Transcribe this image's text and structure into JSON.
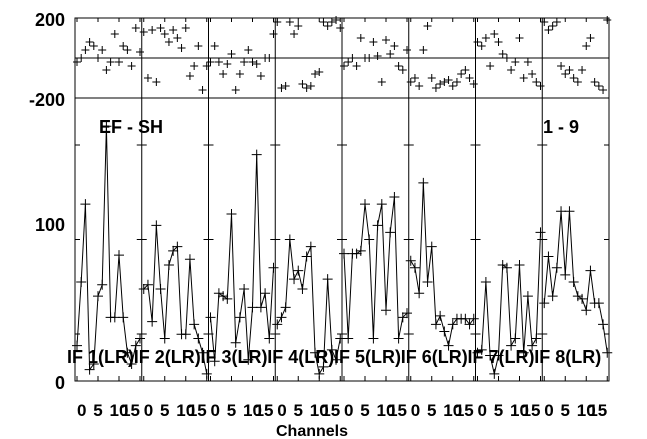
{
  "chart_data": {
    "type": "line",
    "text": {
      "annotation_left": "EF - SH",
      "annotation_right": "1 - 9",
      "xlabel": "Channels"
    },
    "x": [
      0,
      1,
      2,
      3,
      4,
      5,
      6,
      7,
      8,
      9,
      10,
      11,
      12,
      13,
      14,
      15
    ],
    "xticks": [
      0,
      5,
      10,
      15
    ],
    "panels": [
      {
        "label": "IF 1(LR)",
        "amp": [
          25,
          70,
          125,
          8,
          12,
          60,
          68,
          180,
          45,
          45,
          89,
          45,
          20,
          12,
          25,
          30
        ],
        "phase": [
          -20,
          0,
          40,
          80,
          60,
          0,
          40,
          -60,
          -20,
          120,
          -20,
          60,
          40,
          -40,
          150,
          30
        ]
      },
      {
        "label": "IF 2(LR)",
        "amp": [
          65,
          68,
          42,
          110,
          65,
          30,
          82,
          92,
          95,
          33,
          33,
          86,
          40,
          30,
          20,
          5
        ],
        "phase": [
          130,
          -100,
          140,
          -120,
          150,
          120,
          80,
          140,
          100,
          50,
          150,
          -90,
          -40,
          60,
          -160,
          -40
        ]
      },
      {
        "label": "IF 3(LR)",
        "amp": [
          45,
          14,
          62,
          60,
          58,
          118,
          27,
          45,
          65,
          15,
          52,
          160,
          52,
          62,
          30,
          80
        ],
        "phase": [
          -20,
          60,
          -20,
          -80,
          -30,
          20,
          -160,
          -80,
          -20,
          40,
          -20,
          -30,
          -90,
          0,
          0,
          120
        ]
      },
      {
        "label": "IF 4(LR)",
        "amp": [
          40,
          45,
          52,
          100,
          72,
          78,
          65,
          88,
          95,
          20,
          5,
          10,
          72,
          22,
          15,
          30
        ],
        "phase": [
          180,
          -150,
          -140,
          180,
          120,
          160,
          -130,
          -150,
          -140,
          -80,
          -70,
          180,
          160,
          180,
          190,
          150
        ]
      },
      {
        "label": "IF 5(LR)",
        "amp": [
          90,
          30,
          90,
          90,
          92,
          125,
          100,
          30,
          110,
          125,
          50,
          105,
          130,
          30,
          45,
          48
        ],
        "phase": [
          -40,
          -20,
          0,
          -40,
          100,
          0,
          0,
          80,
          10,
          -120,
          90,
          20,
          60,
          -40,
          -60,
          40
        ]
      },
      {
        "label": "IF 6(LR)",
        "amp": [
          85,
          80,
          62,
          140,
          70,
          95,
          40,
          46,
          35,
          25,
          40,
          44,
          44,
          44,
          40,
          44
        ],
        "phase": [
          -120,
          -100,
          -140,
          40,
          160,
          -100,
          -150,
          -130,
          -120,
          -110,
          -140,
          -120,
          -80,
          -60,
          -100,
          -130
        ]
      },
      {
        "label": "IF 7(LR)",
        "amp": [
          20,
          22,
          70,
          18,
          5,
          18,
          82,
          80,
          25,
          30,
          82,
          20,
          60,
          25,
          30,
          105
        ],
        "phase": [
          80,
          60,
          100,
          -40,
          120,
          80,
          20,
          0,
          -60,
          -20,
          100,
          -100,
          -20,
          -80,
          -120,
          -140
        ]
      },
      {
        "label": "IF 8(LR)",
        "amp": [
          55,
          88,
          60,
          80,
          120,
          75,
          120,
          70,
          60,
          58,
          50,
          78,
          55,
          55,
          40,
          20
        ],
        "phase": [
          180,
          140,
          160,
          180,
          -40,
          -80,
          -60,
          -100,
          -120,
          -60,
          60,
          100,
          -120,
          -140,
          -160,
          190
        ]
      }
    ],
    "phase_axis": {
      "ticks": [
        "200",
        "-200"
      ],
      "ylim": [
        -200,
        200
      ]
    },
    "amp_axis": {
      "ticks": [
        "100",
        "0"
      ],
      "ylim": [
        0,
        200
      ]
    }
  }
}
